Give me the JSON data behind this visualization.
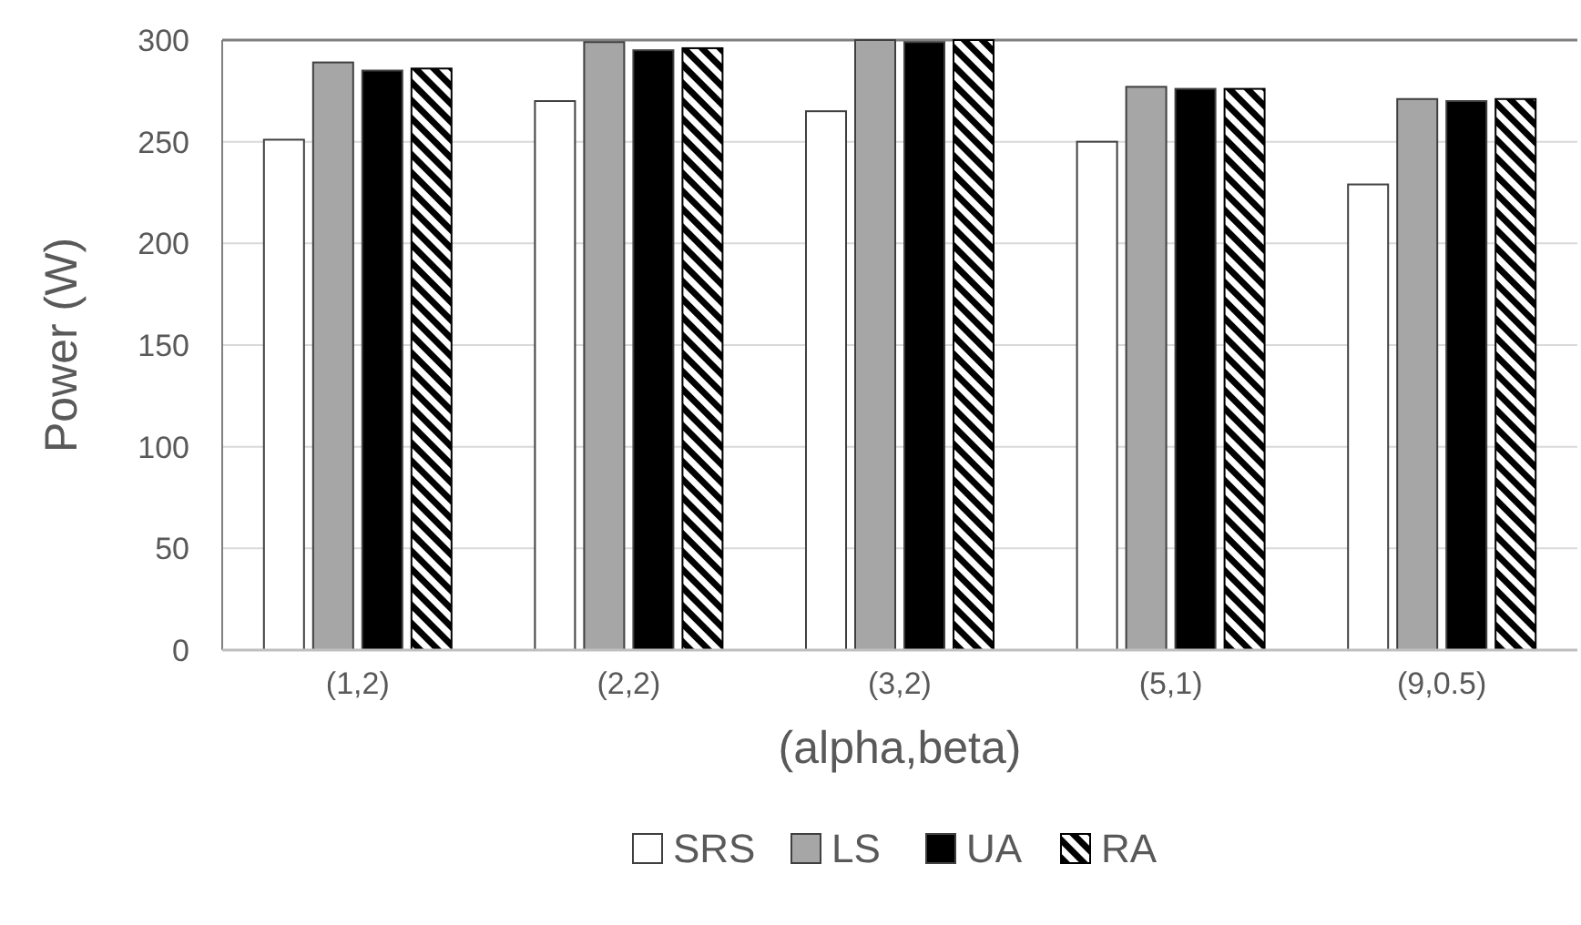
{
  "chart_data": {
    "type": "bar",
    "xlabel": "(alpha,beta)",
    "ylabel": "Power (W)",
    "categories": [
      "(1,2)",
      "(2,2)",
      "(3,2)",
      "(5,1)",
      "(9,0.5)"
    ],
    "series": [
      {
        "name": "SRS",
        "color": "#ffffff",
        "values": [
          251,
          270,
          265,
          250,
          229
        ]
      },
      {
        "name": "LS",
        "color": "#a6a6a6",
        "values": [
          289,
          299,
          300,
          277,
          271
        ]
      },
      {
        "name": "UA",
        "color": "#000000",
        "values": [
          285,
          295,
          299,
          276,
          270
        ]
      },
      {
        "name": "RA",
        "color": "#000000",
        "values": [
          286,
          296,
          300,
          276,
          271
        ]
      }
    ],
    "ylim": [
      0,
      300
    ],
    "yticks": [
      0,
      50,
      100,
      150,
      200,
      250,
      300
    ],
    "grid": "y",
    "legend": "bottom"
  }
}
